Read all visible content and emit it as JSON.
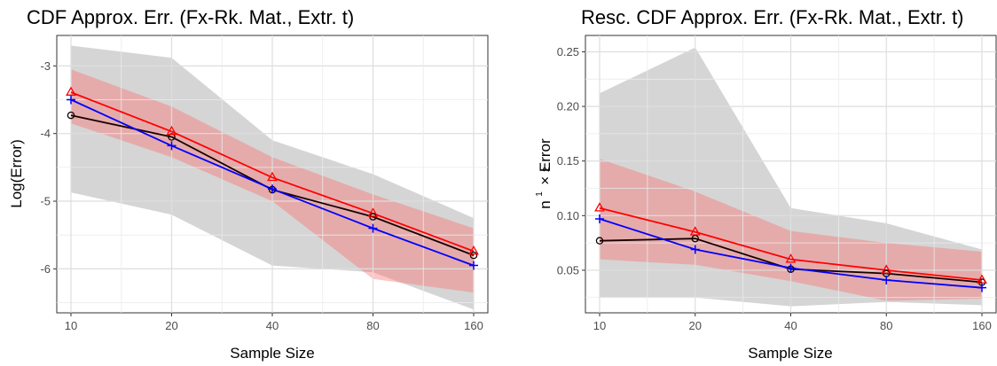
{
  "chart_data": [
    {
      "type": "line",
      "title": "CDF Approx. Err. (Fx-Rk. Mat., Extr. t)",
      "xlabel": "Sample Size",
      "ylabel": "Log(Error)",
      "x_scale": "log2",
      "x": [
        10,
        20,
        40,
        80,
        160
      ],
      "x_tick_labels": [
        "10",
        "20",
        "40",
        "80",
        "160"
      ],
      "ylim": [
        -6.65,
        -2.55
      ],
      "y_ticks": [
        -6,
        -5,
        -4,
        -3
      ],
      "y_tick_labels": [
        "-6",
        "-5",
        "-4",
        "-3"
      ],
      "grid": true,
      "series": [
        {
          "color": "#1a0000",
          "marker": "circle",
          "values": [
            -3.73,
            -4.05,
            -4.83,
            -5.23,
            -5.8
          ]
        },
        {
          "color": "#0000ff",
          "marker": "plus",
          "values": [
            -3.5,
            -4.18,
            -4.82,
            -5.4,
            -5.95
          ]
        },
        {
          "color": "#ff0000",
          "marker": "triangle",
          "values": [
            -3.39,
            -3.97,
            -4.65,
            -5.18,
            -5.74
          ]
        }
      ],
      "bands": [
        {
          "color": "#bfbfbf",
          "opacity": 0.65,
          "lower": [
            -4.87,
            -5.2,
            -5.95,
            -6.05,
            -6.6
          ],
          "upper": [
            -2.7,
            -2.88,
            -4.1,
            -4.6,
            -5.25
          ]
        },
        {
          "color": "#ff6666",
          "opacity": 0.38,
          "lower": [
            -3.85,
            -4.35,
            -5.0,
            -6.15,
            -6.35
          ],
          "upper": [
            -3.05,
            -3.6,
            -4.35,
            -4.9,
            -5.4
          ]
        }
      ]
    },
    {
      "type": "line",
      "title": "Resc. CDF Approx. Err. (Fx-Rk. Mat., Extr. t)",
      "xlabel": "Sample Size",
      "ylabel_parts": {
        "base": "n",
        "sup_num": "1",
        "sup_den": "2",
        "suffix": "× Error"
      },
      "x_scale": "log2",
      "x": [
        10,
        20,
        40,
        80,
        160
      ],
      "x_tick_labels": [
        "10",
        "20",
        "40",
        "80",
        "160"
      ],
      "ylim": [
        0.011,
        0.265
      ],
      "y_ticks": [
        0.05,
        0.1,
        0.15,
        0.2,
        0.25
      ],
      "y_tick_labels": [
        "0.05",
        "0.10",
        "0.15",
        "0.20",
        "0.25"
      ],
      "grid": true,
      "series": [
        {
          "color": "#1a0000",
          "marker": "circle",
          "values": [
            0.077,
            0.079,
            0.051,
            0.047,
            0.039
          ]
        },
        {
          "color": "#0000ff",
          "marker": "plus",
          "values": [
            0.097,
            0.069,
            0.052,
            0.041,
            0.034
          ]
        },
        {
          "color": "#ff0000",
          "marker": "triangle",
          "values": [
            0.107,
            0.085,
            0.06,
            0.05,
            0.041
          ]
        }
      ],
      "bands": [
        {
          "color": "#bfbfbf",
          "opacity": 0.65,
          "lower": [
            0.025,
            0.025,
            0.017,
            0.021,
            0.018
          ],
          "upper": [
            0.212,
            0.254,
            0.107,
            0.093,
            0.069
          ]
        },
        {
          "color": "#ff6666",
          "opacity": 0.38,
          "lower": [
            0.06,
            0.055,
            0.04,
            0.022,
            0.024
          ],
          "upper": [
            0.152,
            0.122,
            0.086,
            0.075,
            0.067
          ]
        }
      ]
    }
  ]
}
